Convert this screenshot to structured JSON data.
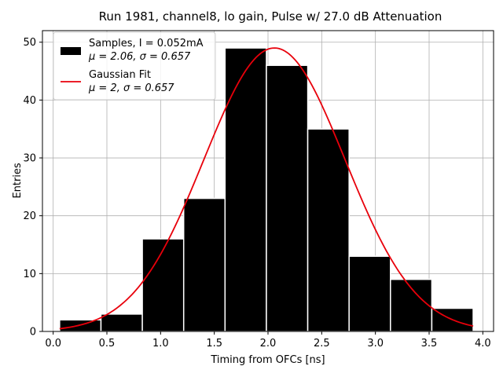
{
  "chart_data": {
    "type": "bar",
    "title": "Run 1981, channel8, lo gain, Pulse w/ 27.0 dB Attenuation",
    "xlabel": "Timing from OFCs [ns]",
    "ylabel": "Entries",
    "xlim": [
      -0.1,
      4.1
    ],
    "ylim": [
      0,
      52
    ],
    "xticks": [
      0.0,
      0.5,
      1.0,
      1.5,
      2.0,
      2.5,
      3.0,
      3.5,
      4.0
    ],
    "xtick_labels": [
      "0.0",
      "0.5",
      "1.0",
      "1.5",
      "2.0",
      "2.5",
      "3.0",
      "3.5",
      "4.0"
    ],
    "yticks": [
      0,
      10,
      20,
      30,
      40,
      50
    ],
    "ytick_labels": [
      "0",
      "10",
      "20",
      "30",
      "40",
      "50"
    ],
    "grid": true,
    "legend_position": "top-left",
    "histogram": {
      "bin_edges": [
        0.06,
        0.445,
        0.83,
        1.215,
        1.6,
        1.985,
        2.37,
        2.755,
        3.14,
        3.525,
        3.91
      ],
      "counts": [
        2,
        3,
        16,
        23,
        49,
        46,
        35,
        13,
        9,
        4
      ],
      "color": "#000000",
      "edge_color": "#ffffff",
      "legend_line1": "Samples, I = 0.052mA",
      "legend_line2_mu": "μ = 2.06, ",
      "legend_line2_sigma": "σ = 0.657"
    },
    "fit": {
      "type": "gaussian",
      "amplitude": 49,
      "mu": 2.06,
      "sigma": 0.657,
      "x_range": [
        0.06,
        3.91
      ],
      "color": "#e8000b",
      "legend_line1": "Gaussian Fit",
      "legend_line2_mu": "μ = 2, ",
      "legend_line2_sigma": "σ = 0.657"
    }
  }
}
